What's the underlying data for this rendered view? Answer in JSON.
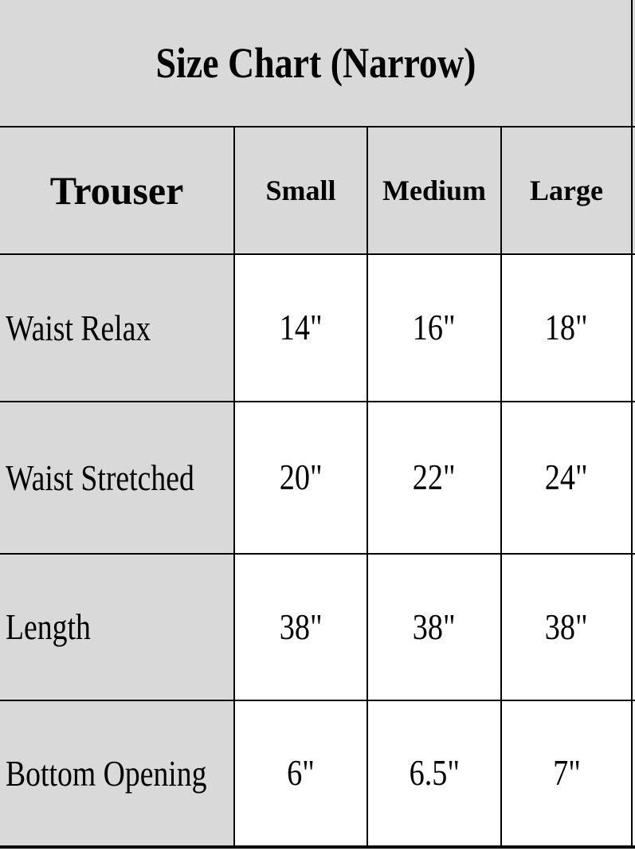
{
  "chart_data": {
    "type": "table",
    "title": "Size Chart (Narrow)",
    "corner_header": "Trouser",
    "columns": [
      "Small",
      "Medium",
      "Large"
    ],
    "rows": [
      {
        "label": "Waist Relax",
        "values": [
          "14\"",
          "16\"",
          "18\""
        ]
      },
      {
        "label": "Waist Stretched",
        "values": [
          "20\"",
          "22\"",
          "24\""
        ]
      },
      {
        "label": "Length",
        "values": [
          "38\"",
          "38\"",
          "38\""
        ]
      },
      {
        "label": "Bottom Opening",
        "values": [
          "6\"",
          "6.5\"",
          "7\""
        ]
      }
    ],
    "layout_hints": {
      "header_background": "gray",
      "label_column_background": "gray",
      "value_cells_background": "white",
      "units": "inches"
    }
  },
  "colors": {
    "cell_gray": "#d9d9d9",
    "cell_white": "#ffffff",
    "border_black": "#000000",
    "text_black": "#000000"
  }
}
